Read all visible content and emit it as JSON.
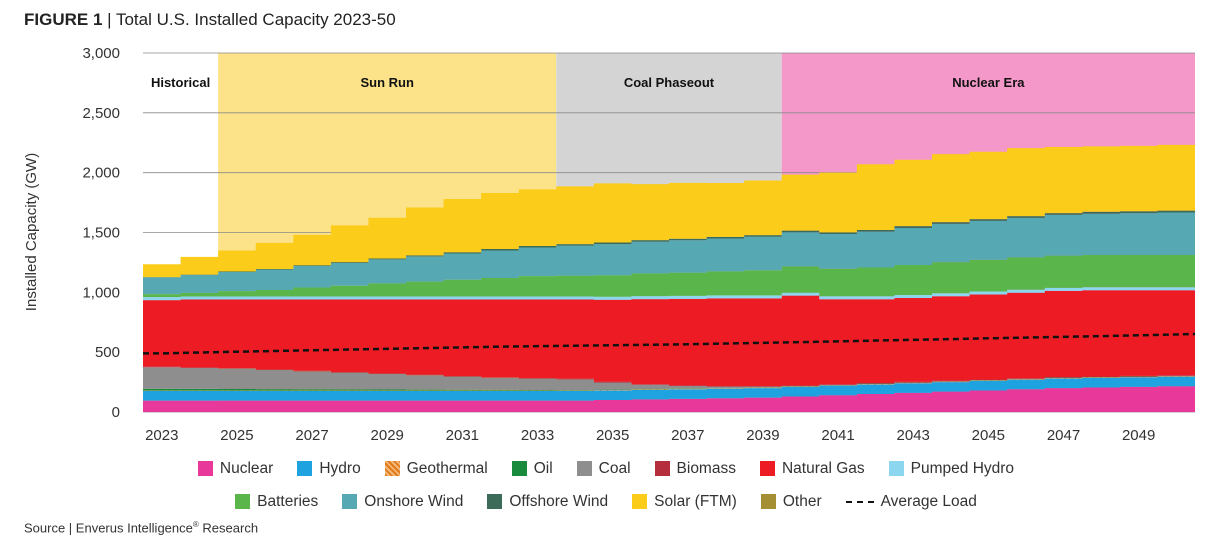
{
  "figure": {
    "label": "FIGURE 1",
    "separator": " | ",
    "title": "Total U.S. Installed Capacity 2023-50"
  },
  "source": {
    "text": "Source | Enverus Intelligence",
    "suffix": "Research"
  },
  "chart_data": {
    "type": "area",
    "stacked": true,
    "step": true,
    "title": "Total U.S. Installed Capacity 2023-50",
    "ylabel": "Installed Capacity (GW)",
    "xlabel": "",
    "ylim": [
      0,
      3000
    ],
    "yticks": [
      0,
      500,
      1000,
      1500,
      2000,
      2500,
      3000
    ],
    "ytick_labels": [
      "0",
      "500",
      "1,000",
      "1,500",
      "2,000",
      "2,500",
      "3,000"
    ],
    "xtick_labels": [
      "2023",
      "2025",
      "2027",
      "2029",
      "2031",
      "2033",
      "2035",
      "2037",
      "2039",
      "2041",
      "2043",
      "2045",
      "2047",
      "2049"
    ],
    "years": [
      2023,
      2024,
      2025,
      2026,
      2027,
      2028,
      2029,
      2030,
      2031,
      2032,
      2033,
      2034,
      2035,
      2036,
      2037,
      2038,
      2039,
      2040,
      2041,
      2042,
      2043,
      2044,
      2045,
      2046,
      2047,
      2048,
      2049,
      2050
    ],
    "grid": "horizontal",
    "periods": [
      {
        "label": "Historical",
        "start": 2023,
        "end": 2024,
        "color": "#ffffff"
      },
      {
        "label": "Sun Run",
        "start": 2025,
        "end": 2033,
        "color": "#fce38a"
      },
      {
        "label": "Coal Phaseout",
        "start": 2034,
        "end": 2039,
        "color": "#d4d4d4"
      },
      {
        "label": "Nuclear Era",
        "start": 2040,
        "end": 2050,
        "color": "#f398c9"
      }
    ],
    "series": [
      {
        "name": "Nuclear",
        "color": "#e8389a",
        "pattern": "solid",
        "values": [
          95,
          95,
          95,
          95,
          95,
          95,
          95,
          95,
          95,
          95,
          95,
          95,
          100,
          105,
          110,
          115,
          120,
          130,
          140,
          150,
          160,
          170,
          180,
          190,
          200,
          205,
          210,
          215
        ]
      },
      {
        "name": "Hydro",
        "color": "#1fa3e0",
        "pattern": "solid",
        "values": [
          80,
          80,
          80,
          80,
          80,
          80,
          80,
          80,
          80,
          80,
          80,
          80,
          80,
          80,
          80,
          80,
          80,
          80,
          80,
          80,
          80,
          80,
          80,
          80,
          80,
          80,
          80,
          80
        ]
      },
      {
        "name": "Geothermal",
        "color": "#f08c33",
        "pattern": "hatch",
        "values": [
          4,
          4,
          4,
          4,
          4,
          4,
          4,
          4,
          4,
          4,
          4,
          4,
          4,
          4,
          4,
          4,
          4,
          4,
          4,
          4,
          4,
          4,
          4,
          4,
          4,
          4,
          4,
          4
        ]
      },
      {
        "name": "Oil",
        "color": "#1a8a3c",
        "pattern": "solid",
        "values": [
          15,
          14,
          13,
          12,
          11,
          10,
          9,
          8,
          7,
          6,
          5,
          4,
          3,
          3,
          3,
          3,
          3,
          3,
          3,
          3,
          3,
          3,
          3,
          3,
          3,
          3,
          3,
          3
        ]
      },
      {
        "name": "Coal",
        "color": "#8e8e8e",
        "pattern": "solid",
        "values": [
          180,
          175,
          170,
          160,
          150,
          140,
          130,
          120,
          110,
          100,
          95,
          90,
          60,
          35,
          20,
          10,
          5,
          0,
          0,
          0,
          0,
          0,
          0,
          0,
          0,
          0,
          0,
          0
        ]
      },
      {
        "name": "Biomass",
        "color": "#b52e3e",
        "pattern": "solid",
        "values": [
          5,
          5,
          5,
          5,
          5,
          5,
          5,
          5,
          5,
          5,
          5,
          5,
          5,
          5,
          5,
          5,
          5,
          5,
          5,
          5,
          5,
          5,
          5,
          5,
          5,
          5,
          5,
          5
        ]
      },
      {
        "name": "Natural Gas",
        "color": "#ed1c24",
        "pattern": "solid",
        "values": [
          556,
          567,
          573,
          584,
          595,
          606,
          617,
          628,
          639,
          650,
          656,
          662,
          686,
          711,
          723,
          733,
          733,
          750,
          710,
          700,
          701,
          705,
          710,
          715,
          720,
          720,
          715,
          710
        ]
      },
      {
        "name": "Pumped Hydro",
        "color": "#8dd6f0",
        "pattern": "solid",
        "values": [
          25,
          25,
          25,
          25,
          25,
          25,
          25,
          25,
          25,
          25,
          25,
          25,
          25,
          25,
          25,
          25,
          25,
          25,
          25,
          25,
          25,
          25,
          25,
          25,
          25,
          25,
          25,
          25
        ]
      },
      {
        "name": "Batteries",
        "color": "#5ab54b",
        "pattern": "solid",
        "values": [
          25,
          30,
          45,
          55,
          75,
          90,
          110,
          125,
          140,
          155,
          170,
          175,
          180,
          190,
          195,
          200,
          210,
          220,
          230,
          240,
          250,
          260,
          265,
          270,
          270,
          270,
          270,
          270
        ]
      },
      {
        "name": "Onshore Wind",
        "color": "#56a8b3",
        "pattern": "solid",
        "values": [
          140,
          150,
          160,
          170,
          180,
          190,
          200,
          210,
          220,
          230,
          240,
          250,
          260,
          265,
          270,
          275,
          280,
          285,
          290,
          300,
          310,
          320,
          325,
          330,
          340,
          345,
          350,
          355
        ]
      },
      {
        "name": "Offshore Wind",
        "color": "#3d6b5a",
        "pattern": "solid",
        "values": [
          2,
          3,
          4,
          5,
          6,
          7,
          8,
          9,
          10,
          12,
          12,
          13,
          13,
          13,
          13,
          13,
          13,
          14,
          14,
          14,
          15,
          15,
          15,
          15,
          15,
          16,
          16,
          16
        ]
      },
      {
        "name": "Solar (FTM)",
        "color": "#fbcd1a",
        "pattern": "solid",
        "values": [
          108,
          148,
          176,
          218,
          254,
          308,
          340,
          400,
          445,
          468,
          473,
          482,
          494,
          468,
          467,
          451,
          457,
          468,
          499,
          549,
          555,
          568,
          563,
          568,
          553,
          547,
          546,
          549
        ]
      },
      {
        "name": "Other",
        "color": "#a58f35",
        "pattern": "solid",
        "values": [
          0,
          0,
          0,
          0,
          0,
          0,
          0,
          0,
          0,
          0,
          0,
          0,
          0,
          0,
          0,
          0,
          0,
          0,
          0,
          0,
          0,
          0,
          0,
          0,
          0,
          0,
          0,
          0
        ]
      }
    ],
    "average_load": {
      "name": "Average Load",
      "style": "dashed",
      "color": "#111111",
      "values": [
        490,
        497,
        504,
        510,
        516,
        522,
        528,
        534,
        540,
        546,
        550,
        554,
        558,
        562,
        566,
        572,
        578,
        584,
        590,
        597,
        603,
        609,
        616,
        622,
        628,
        634,
        641,
        648
      ]
    }
  }
}
